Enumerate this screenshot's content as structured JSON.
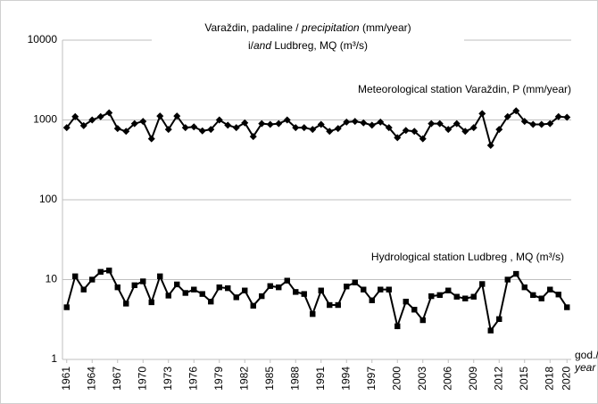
{
  "chart_data": {
    "type": "line",
    "title": [
      [
        "Varaždin, padaline / ",
        "precipitation",
        " (mm/year)"
      ],
      [
        "i/",
        "and",
        " Ludbreg, MQ (m³/s)"
      ]
    ],
    "annotations": [
      "Meteorological station Varaždin, P (mm/year)",
      "Hydrological station Ludbreg , MQ (m³/s)"
    ],
    "xlabel": [
      "god./",
      "year"
    ],
    "x": [
      1961,
      1962,
      1963,
      1964,
      1965,
      1966,
      1967,
      1968,
      1969,
      1970,
      1971,
      1972,
      1973,
      1974,
      1975,
      1976,
      1977,
      1978,
      1979,
      1980,
      1981,
      1982,
      1983,
      1984,
      1985,
      1986,
      1987,
      1988,
      1989,
      1990,
      1991,
      1992,
      1993,
      1994,
      1995,
      1996,
      1997,
      1998,
      1999,
      2000,
      2001,
      2002,
      2003,
      2004,
      2005,
      2006,
      2007,
      2008,
      2009,
      2010,
      2011,
      2012,
      2013,
      2014,
      2015,
      2016,
      2017,
      2018,
      2019,
      2020
    ],
    "series": [
      {
        "color": "#000000",
        "marker": "diamond",
        "values": [
          800,
          1100,
          850,
          1000,
          1100,
          1230,
          780,
          720,
          900,
          960,
          580,
          1120,
          760,
          1120,
          800,
          820,
          730,
          760,
          1000,
          860,
          800,
          920,
          620,
          900,
          880,
          900,
          1000,
          800,
          800,
          760,
          880,
          720,
          780,
          940,
          960,
          920,
          860,
          940,
          800,
          600,
          740,
          720,
          580,
          900,
          900,
          760,
          900,
          720,
          800,
          1200,
          480,
          760,
          1100,
          1300,
          960,
          880,
          880,
          900,
          1100,
          1080
        ]
      },
      {
        "color": "#000000",
        "marker": "square",
        "values": [
          4.5,
          11,
          7.5,
          10,
          12.5,
          13,
          8,
          5,
          8.5,
          9.5,
          5.2,
          11,
          6.3,
          8.7,
          6.8,
          7.5,
          6.6,
          5.3,
          8,
          7.8,
          6,
          7.3,
          4.7,
          6.2,
          8.3,
          8,
          9.7,
          7,
          6.6,
          3.7,
          7.3,
          4.8,
          4.8,
          8.2,
          9.2,
          7.5,
          5.5,
          7.5,
          7.5,
          2.6,
          5.3,
          4.2,
          3.1,
          6.2,
          6.4,
          7.3,
          6.1,
          5.8,
          6.1,
          8.8,
          2.3,
          3.2,
          10,
          11.8,
          8,
          6.4,
          5.8,
          7.5,
          6.5,
          4.5
        ]
      }
    ],
    "xlim": [
      1960.5,
      2020.5
    ],
    "xticks": [
      1961,
      1964,
      1967,
      1970,
      1973,
      1976,
      1979,
      1982,
      1985,
      1988,
      1991,
      1994,
      1997,
      2000,
      2003,
      2006,
      2009,
      2012,
      2015,
      2018,
      2020
    ],
    "ylim": [
      1,
      10000
    ],
    "yticks": [
      1,
      10,
      100,
      1000,
      10000
    ],
    "log_y": true,
    "grid": true
  }
}
